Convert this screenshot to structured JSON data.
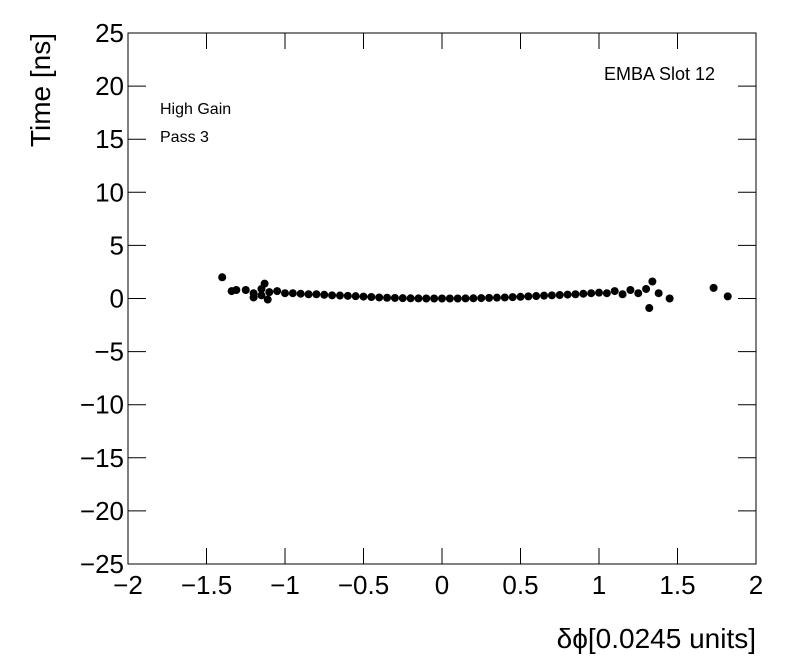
{
  "chart_data": {
    "type": "scatter",
    "x_label": "δϕ[0.0245 units]",
    "y_label": "Time [ns]",
    "annotations": [
      "EMBA Slot 12",
      "High Gain",
      "Pass 3"
    ],
    "xlim": [
      -2,
      2
    ],
    "ylim": [
      -25,
      25
    ],
    "xticks": [
      {
        "value": -2,
        "label": "−2"
      },
      {
        "value": -1.5,
        "label": "−1.5"
      },
      {
        "value": -1,
        "label": "−1"
      },
      {
        "value": -0.5,
        "label": "−0.5"
      },
      0,
      0.5,
      1,
      1.5,
      2
    ],
    "yticks": [
      {
        "value": -25,
        "label": "−25"
      },
      {
        "value": -20,
        "label": "−20"
      },
      {
        "value": -15,
        "label": "−15"
      },
      {
        "value": -10,
        "label": "−10"
      },
      {
        "value": -5,
        "label": "−5"
      },
      0,
      5,
      10,
      15,
      20,
      25
    ],
    "color": "#000000",
    "x": [
      -1.4,
      -1.34,
      -1.31,
      -1.2,
      -1.15,
      -1.13,
      -1.11,
      1.32,
      1.34,
      1.38,
      1.45,
      1.73,
      1.82,
      -1.25,
      -1.2,
      -1.15,
      -1.1,
      -1.05,
      -1.0,
      -0.95,
      -0.9,
      -0.85,
      -0.8,
      -0.75,
      -0.7,
      -0.65,
      -0.6,
      -0.55,
      -0.5,
      -0.45,
      -0.4,
      -0.35,
      -0.3,
      -0.25,
      -0.2,
      -0.15,
      -0.1,
      -0.05,
      0,
      0.05,
      0.1,
      0.15,
      0.2,
      0.25,
      0.3,
      0.35,
      0.4,
      0.45,
      0.5,
      0.55,
      0.6,
      0.65,
      0.7,
      0.75,
      0.8,
      0.85,
      0.9,
      0.95,
      1.0,
      1.05,
      1.1,
      1.15,
      1.2,
      1.25,
      1.3
    ],
    "values": [
      2.0,
      0.7,
      0.8,
      0.1,
      0.3,
      1.4,
      -0.1,
      -0.9,
      1.6,
      0.5,
      0.0,
      1.0,
      0.2,
      0.8,
      0.5,
      0.9,
      0.6,
      0.7,
      0.5,
      0.5,
      0.45,
      0.4,
      0.4,
      0.35,
      0.3,
      0.28,
      0.25,
      0.22,
      0.18,
      0.14,
      0.1,
      0.07,
      0.05,
      0.03,
      0.02,
      0.01,
      0,
      0,
      0,
      0,
      0,
      0.01,
      0.02,
      0.04,
      0.06,
      0.08,
      0.1,
      0.13,
      0.16,
      0.2,
      0.23,
      0.27,
      0.3,
      0.33,
      0.37,
      0.4,
      0.45,
      0.5,
      0.55,
      0.5,
      0.7,
      0.4,
      0.8,
      0.5,
      0.9
    ]
  }
}
